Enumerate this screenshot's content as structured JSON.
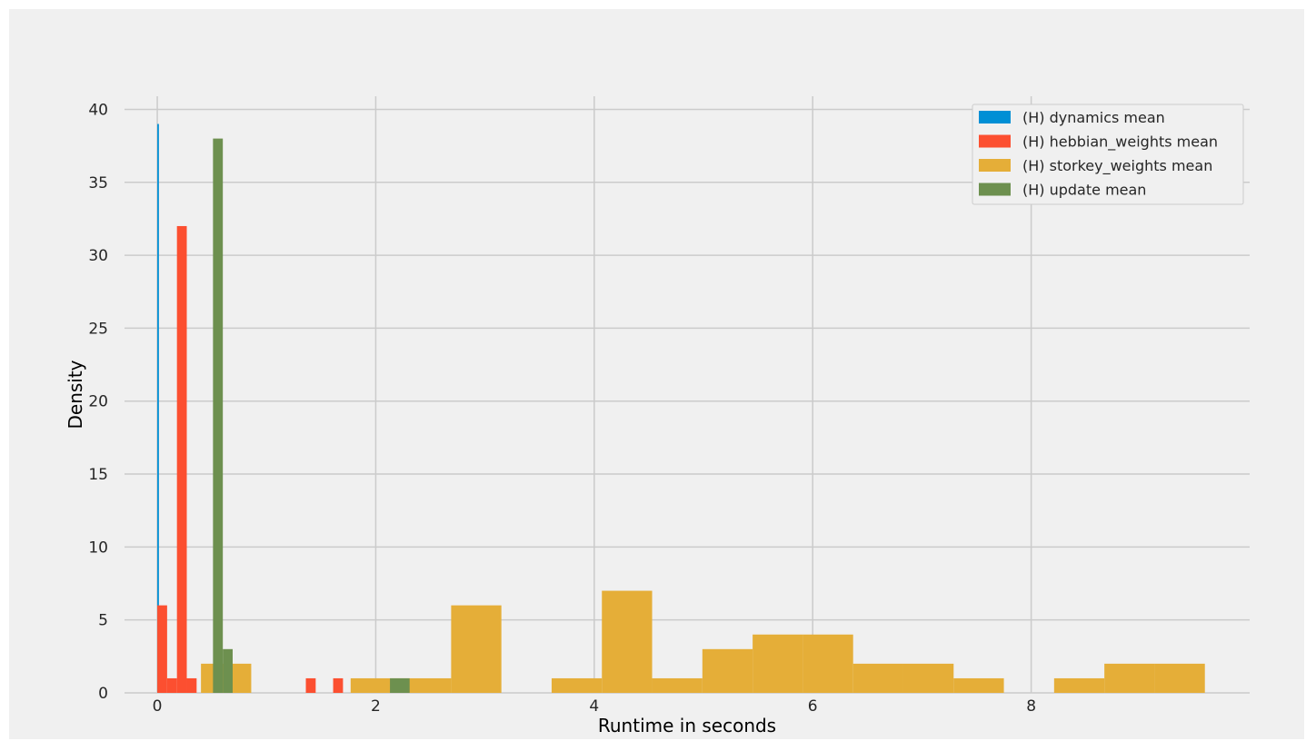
{
  "chart_data": {
    "type": "histogram",
    "title": "",
    "xlabel": "Runtime in seconds",
    "ylabel": "Density",
    "xlim": [
      -0.3,
      10.0
    ],
    "ylim": [
      0,
      40.9
    ],
    "xticks": [
      0,
      2,
      4,
      6,
      8
    ],
    "yticks": [
      0,
      5,
      10,
      15,
      20,
      25,
      30,
      35,
      40
    ],
    "grid": true,
    "legend_position": "top-right",
    "series": [
      {
        "name": "(H) dynamics mean",
        "color": "#008fd5",
        "bins": [
          [
            0.0,
            0.015,
            39
          ]
        ]
      },
      {
        "name": "(H) hebbian_weights mean",
        "color": "#fc4f30",
        "bins": [
          [
            0.0,
            0.09,
            6
          ],
          [
            0.09,
            0.18,
            1
          ],
          [
            0.18,
            0.27,
            32
          ],
          [
            0.27,
            0.36,
            1
          ],
          [
            1.36,
            1.45,
            1
          ],
          [
            1.61,
            1.7,
            1
          ]
        ]
      },
      {
        "name": "(H) storkey_weights mean",
        "color": "#e5ae38",
        "bins": [
          [
            0.4,
            0.86,
            2
          ],
          [
            1.77,
            2.23,
            1
          ],
          [
            2.23,
            2.69,
            1
          ],
          [
            2.69,
            3.15,
            6
          ],
          [
            3.61,
            4.07,
            1
          ],
          [
            4.07,
            4.53,
            7
          ],
          [
            4.53,
            4.99,
            1
          ],
          [
            4.99,
            5.45,
            3
          ],
          [
            5.45,
            5.91,
            4
          ],
          [
            5.91,
            6.37,
            4
          ],
          [
            6.37,
            6.83,
            2
          ],
          [
            6.83,
            7.29,
            2
          ],
          [
            7.29,
            7.75,
            1
          ],
          [
            8.21,
            8.67,
            1
          ],
          [
            8.67,
            9.13,
            2
          ],
          [
            9.13,
            9.59,
            2
          ]
        ]
      },
      {
        "name": "(H) update mean",
        "color": "#6d904f",
        "bins": [
          [
            0.51,
            0.6,
            38
          ],
          [
            0.6,
            0.69,
            3
          ],
          [
            2.13,
            2.31,
            1
          ]
        ]
      }
    ]
  }
}
